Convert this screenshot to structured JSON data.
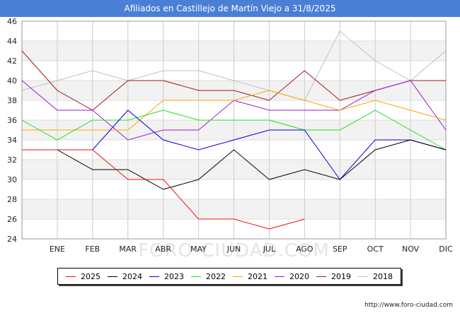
{
  "chart_data": {
    "type": "line",
    "title": "Afiliados en Castillejo de Martín Viejo a 31/8/2025",
    "xlabel": "",
    "ylabel": "",
    "ylim": [
      24,
      46
    ],
    "yticks": [
      24,
      26,
      28,
      30,
      32,
      34,
      36,
      38,
      40,
      42,
      44,
      46
    ],
    "categories": [
      "",
      "ENE",
      "FEB",
      "MAR",
      "ABR",
      "MAY",
      "JUN",
      "JUL",
      "AGO",
      "SEP",
      "OCT",
      "NOV",
      "DIC"
    ],
    "legend_position": "bottom",
    "watermark": "FORO-CIUDAD.COM",
    "series": [
      {
        "name": "2018",
        "color": "#c0c0c0",
        "values": [
          39,
          40,
          41,
          40,
          41,
          41,
          40,
          39,
          38,
          45,
          42,
          40,
          43
        ]
      },
      {
        "name": "2019",
        "color": "#a01818",
        "values": [
          43,
          39,
          37,
          40,
          40,
          39,
          39,
          38,
          41,
          38,
          39,
          40,
          40
        ]
      },
      {
        "name": "2020",
        "color": "#9a1ad0",
        "values": [
          40,
          37,
          37,
          34,
          35,
          35,
          38,
          37,
          37,
          37,
          39,
          40,
          35
        ]
      },
      {
        "name": "2021",
        "color": "#ffa500",
        "values": [
          35,
          35,
          35,
          35,
          38,
          38,
          38,
          39,
          38,
          37,
          38,
          37,
          36
        ]
      },
      {
        "name": "2022",
        "color": "#22dd22",
        "values": [
          36,
          34,
          36,
          36,
          37,
          36,
          36,
          36,
          35,
          35,
          37,
          35,
          33
        ]
      },
      {
        "name": "2023",
        "color": "#0000dd",
        "values": [
          33,
          33,
          33,
          37,
          34,
          33,
          34,
          35,
          35,
          30,
          34,
          34,
          33
        ]
      },
      {
        "name": "2024",
        "color": "#000000",
        "values": [
          33,
          33,
          31,
          31,
          29,
          30,
          33,
          30,
          31,
          30,
          33,
          34,
          33
        ]
      },
      {
        "name": "2025",
        "color": "#ee1111",
        "values": [
          33,
          33,
          33,
          30,
          30,
          26,
          26,
          25,
          26,
          null,
          null,
          null,
          null
        ]
      }
    ],
    "legend_order": [
      "2025",
      "2024",
      "2023",
      "2022",
      "2021",
      "2020",
      "2019",
      "2018"
    ]
  },
  "footer": {
    "url": "http://www.foro-ciudad.com"
  }
}
